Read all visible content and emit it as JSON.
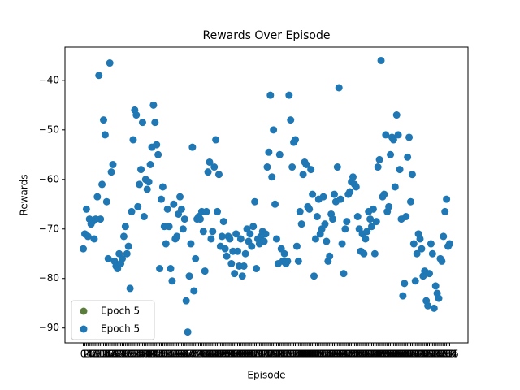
{
  "chart_data": {
    "type": "scatter",
    "title": "Rewards Over Episode",
    "x_label": "Episode",
    "y_label": "Rewards",
    "color": "#1f77b4",
    "legend": [
      {
        "name": "Epoch 5",
        "color": "#5a7d3c"
      },
      {
        "name": "Epoch 5",
        "color": "#1f77b4"
      }
    ],
    "legend_position": "lower left",
    "ylim": [
      -93,
      -33.3
    ],
    "yticks": [
      {
        "value": -90,
        "label": "−90"
      },
      {
        "value": -80,
        "label": "−80"
      },
      {
        "value": -70,
        "label": "−70"
      },
      {
        "value": -60,
        "label": "−60"
      },
      {
        "value": -50,
        "label": "−50"
      },
      {
        "value": -40,
        "label": "−40"
      }
    ],
    "categories": [
      "0",
      "1",
      "2",
      "3",
      "4",
      "5",
      "6",
      "7",
      "8",
      "9",
      "10",
      "11",
      "12",
      "13",
      "14",
      "15",
      "16",
      "17",
      "18",
      "19",
      "20",
      "21",
      "22",
      "23",
      "24",
      "25",
      "26",
      "27",
      "28",
      "29",
      "30",
      "31",
      "32",
      "33",
      "34",
      "35",
      "36",
      "37",
      "38",
      "39",
      "40",
      "41",
      "42",
      "43",
      "44",
      "45",
      "46",
      "47",
      "48",
      "49",
      "50",
      "51",
      "52",
      "53",
      "54",
      "55",
      "56",
      "57",
      "58",
      "59",
      "60",
      "61",
      "62",
      "63",
      "64",
      "65",
      "66",
      "67",
      "68",
      "69",
      "70",
      "71",
      "72",
      "73",
      "74",
      "75",
      "76",
      "77",
      "78",
      "79",
      "80",
      "81",
      "82",
      "83",
      "84",
      "85",
      "86",
      "87",
      "88",
      "89",
      "90",
      "91",
      "92",
      "93",
      "94",
      "95",
      "96",
      "97",
      "98",
      "99",
      "100",
      "101",
      "102",
      "103",
      "104",
      "105",
      "106",
      "107",
      "108",
      "109",
      "110",
      "111",
      "112",
      "113",
      "114",
      "115",
      "116",
      "117",
      "118",
      "119",
      "120",
      "121",
      "122",
      "123",
      "124",
      "125",
      "126",
      "127",
      "128",
      "129",
      "130",
      "131",
      "132",
      "133",
      "134",
      "135",
      "136",
      "137",
      "138",
      "139",
      "140",
      "141",
      "142",
      "143",
      "144",
      "145",
      "146",
      "147",
      "148",
      "149",
      "150",
      "151",
      "152",
      "153",
      "154",
      "155",
      "156",
      "157",
      "158",
      "159",
      "160",
      "161",
      "162",
      "163",
      "164",
      "165",
      "166",
      "167",
      "168",
      "169",
      "170",
      "171",
      "172",
      "173",
      "174",
      "175",
      "176",
      "177",
      "178",
      "179",
      "180",
      "181",
      "182",
      "183",
      "184",
      "185",
      "186",
      "187",
      "188",
      "189",
      "190",
      "191",
      "192",
      "193",
      "194",
      "195",
      "196",
      "197",
      "198",
      "199",
      "200",
      "201",
      "202",
      "203",
      "204",
      "205",
      "206",
      "207",
      "208",
      "209",
      "210",
      "211",
      "212",
      "213",
      "214",
      "215",
      "216",
      "217",
      "218",
      "219",
      "220",
      "221",
      "222",
      "223",
      "224",
      "225",
      "226",
      "227",
      "228",
      "229",
      "230",
      "231",
      "232",
      "233",
      "234",
      "235"
    ],
    "values": [
      -74,
      -71,
      -66,
      -71.5,
      -68,
      -69,
      -68.5,
      -72,
      -68,
      -63.5,
      -39,
      -68,
      -61,
      -48,
      -51,
      -64.5,
      -76,
      -36.5,
      -58.5,
      -57,
      -76.5,
      -77.5,
      -78,
      -75,
      -77,
      -76,
      -71.5,
      -69.5,
      -75,
      -73.5,
      -82,
      -66.5,
      -52,
      -46,
      -47,
      -65.5,
      -61,
      -58,
      -48.5,
      -67.5,
      -60,
      -62,
      -60.5,
      -57,
      -53.5,
      -45,
      -48.5,
      -53,
      -55,
      -78,
      -64,
      -61.5,
      -69.5,
      -73,
      -66,
      -69.5,
      -78,
      -80.5,
      -65,
      -72,
      -71.5,
      -67,
      -63.5,
      -66,
      -70,
      -68,
      -84.5,
      -90.8,
      -79.5,
      -73,
      -53.5,
      -82.5,
      -76,
      -68,
      -67.5,
      -68,
      -66.5,
      -70.5,
      -78.5,
      -66.5,
      -58.5,
      -56.5,
      -72,
      -70.5,
      -57.5,
      -52,
      -66.5,
      -59,
      -73.5,
      -71.5,
      -68.5,
      -74,
      -75.5,
      -71.5,
      -72,
      -77,
      -74.5,
      -79,
      -71,
      -74.5,
      -77.5,
      -72,
      -79.5,
      -77.5,
      -75,
      -70,
      -72.5,
      -71,
      -73.5,
      -69.5,
      -64.5,
      -78,
      -72,
      -73,
      -71.5,
      -70.5,
      -72.5,
      -71,
      -57.5,
      -54.5,
      -43,
      -59.5,
      -50,
      -65,
      -72,
      -77,
      -55,
      -74,
      -76.5,
      -75,
      -77,
      -76.5,
      -43,
      -48,
      -57.5,
      -52.5,
      -52,
      -73.5,
      -76.5,
      -66.5,
      -69,
      -59,
      -56.5,
      -57,
      -65.5,
      -66,
      -58,
      -63,
      -79.5,
      -72,
      -67.5,
      -64,
      -71,
      -70,
      -63.5,
      -69,
      -72.5,
      -76.5,
      -75.5,
      -67,
      -68,
      -63,
      -64.5,
      -57.5,
      -41.5,
      -64,
      -73,
      -79,
      -70,
      -68.5,
      -63,
      -62.5,
      -60.5,
      -59.5,
      -61,
      -61.5,
      -67.5,
      -70,
      -74.5,
      -71,
      -75,
      -72,
      -70.5,
      -66.5,
      -68,
      -69.5,
      -66,
      -75,
      -68.5,
      -57.5,
      -56,
      -36,
      -63.5,
      -63,
      -51,
      -66.5,
      -65.5,
      -55,
      -51.5,
      -52,
      -61.5,
      -47,
      -51,
      -58,
      -68,
      -83.5,
      -81,
      -67.5,
      -55.5,
      -51.5,
      -64.5,
      -59,
      -73,
      -80.5,
      -75,
      -71,
      -72,
      -74,
      -79.5,
      -78.5,
      -84.5,
      -85.5,
      -79,
      -73,
      -75,
      -86,
      -81.5,
      -83,
      -84,
      -76,
      -76.5,
      -71.5,
      -66.5,
      -64,
      -73.5,
      -73
    ]
  }
}
